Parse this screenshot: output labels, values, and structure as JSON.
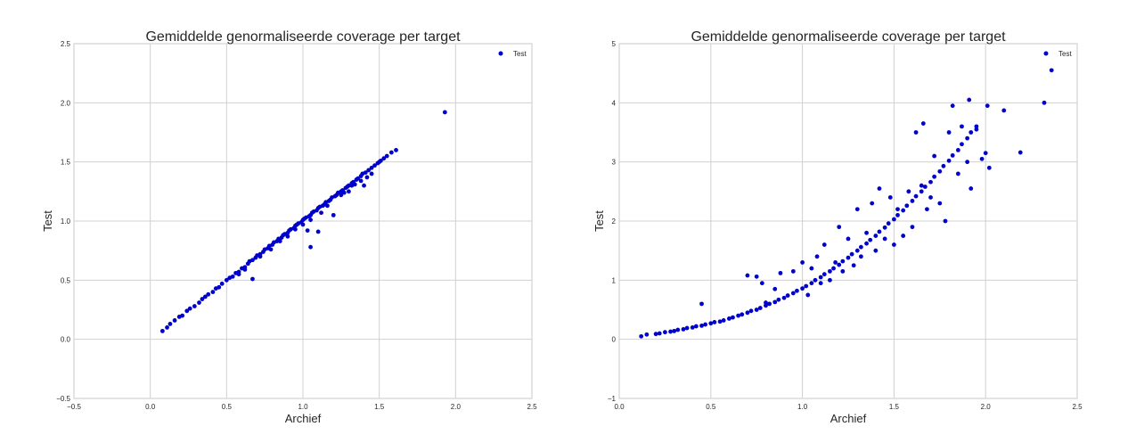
{
  "chart_data": [
    {
      "type": "scatter",
      "title": "Gemiddelde genormaliseerde coverage per target",
      "xlabel": "Archief",
      "ylabel": "Test",
      "xlim": [
        -0.5,
        2.5
      ],
      "ylim": [
        -0.5,
        2.5
      ],
      "xticks": [
        -0.5,
        0.0,
        0.5,
        1.0,
        1.5,
        2.0,
        2.5
      ],
      "yticks": [
        -0.5,
        0.0,
        0.5,
        1.0,
        1.5,
        2.0,
        2.5
      ],
      "xtick_labels": [
        "−0.5",
        "0.0",
        "0.5",
        "1.0",
        "1.5",
        "2.0",
        "2.5"
      ],
      "ytick_labels": [
        "−0.5",
        "0.0",
        "0.5",
        "1.0",
        "1.5",
        "2.0",
        "2.5"
      ],
      "grid": true,
      "legend_position": "top-right",
      "color": "#0000cc",
      "series": [
        {
          "name": "Test",
          "points": [
            [
              0.08,
              0.07
            ],
            [
              0.11,
              0.1
            ],
            [
              0.13,
              0.13
            ],
            [
              0.16,
              0.16
            ],
            [
              0.19,
              0.19
            ],
            [
              0.21,
              0.2
            ],
            [
              0.24,
              0.24
            ],
            [
              0.26,
              0.26
            ],
            [
              0.29,
              0.28
            ],
            [
              0.32,
              0.31
            ],
            [
              0.34,
              0.34
            ],
            [
              0.36,
              0.36
            ],
            [
              0.38,
              0.38
            ],
            [
              0.41,
              0.4
            ],
            [
              0.43,
              0.43
            ],
            [
              0.45,
              0.44
            ],
            [
              0.47,
              0.47
            ],
            [
              0.5,
              0.5
            ],
            [
              0.52,
              0.52
            ],
            [
              0.54,
              0.53
            ],
            [
              0.56,
              0.56
            ],
            [
              0.58,
              0.57
            ],
            [
              0.6,
              0.6
            ],
            [
              0.62,
              0.61
            ],
            [
              0.64,
              0.64
            ],
            [
              0.65,
              0.66
            ],
            [
              0.67,
              0.67
            ],
            [
              0.69,
              0.69
            ],
            [
              0.7,
              0.71
            ],
            [
              0.72,
              0.72
            ],
            [
              0.74,
              0.74
            ],
            [
              0.75,
              0.76
            ],
            [
              0.77,
              0.77
            ],
            [
              0.78,
              0.79
            ],
            [
              0.8,
              0.8
            ],
            [
              0.81,
              0.82
            ],
            [
              0.83,
              0.83
            ],
            [
              0.84,
              0.85
            ],
            [
              0.86,
              0.86
            ],
            [
              0.87,
              0.88
            ],
            [
              0.88,
              0.89
            ],
            [
              0.9,
              0.9
            ],
            [
              0.91,
              0.92
            ],
            [
              0.92,
              0.93
            ],
            [
              0.94,
              0.94
            ],
            [
              0.95,
              0.96
            ],
            [
              0.96,
              0.97
            ],
            [
              0.97,
              0.98
            ],
            [
              0.99,
              0.99
            ],
            [
              1.0,
              1.01
            ],
            [
              1.01,
              1.02
            ],
            [
              1.02,
              1.03
            ],
            [
              1.04,
              1.04
            ],
            [
              1.05,
              1.05
            ],
            [
              1.06,
              1.07
            ],
            [
              1.07,
              1.08
            ],
            [
              1.09,
              1.09
            ],
            [
              1.1,
              1.11
            ],
            [
              1.11,
              1.12
            ],
            [
              1.13,
              1.13
            ],
            [
              1.14,
              1.14
            ],
            [
              1.15,
              1.16
            ],
            [
              1.17,
              1.17
            ],
            [
              1.18,
              1.18
            ],
            [
              1.19,
              1.2
            ],
            [
              1.21,
              1.21
            ],
            [
              1.22,
              1.22
            ],
            [
              1.23,
              1.24
            ],
            [
              1.25,
              1.25
            ],
            [
              1.26,
              1.26
            ],
            [
              1.28,
              1.28
            ],
            [
              1.29,
              1.29
            ],
            [
              1.3,
              1.3
            ],
            [
              1.32,
              1.32
            ],
            [
              1.33,
              1.33
            ],
            [
              1.35,
              1.35
            ],
            [
              1.36,
              1.36
            ],
            [
              1.38,
              1.38
            ],
            [
              1.39,
              1.4
            ],
            [
              1.41,
              1.41
            ],
            [
              1.43,
              1.43
            ],
            [
              1.45,
              1.45
            ],
            [
              1.47,
              1.47
            ],
            [
              1.49,
              1.49
            ],
            [
              1.51,
              1.51
            ],
            [
              1.53,
              1.53
            ],
            [
              1.55,
              1.55
            ],
            [
              1.58,
              1.58
            ],
            [
              1.61,
              1.6
            ],
            [
              0.58,
              0.55
            ],
            [
              0.62,
              0.59
            ],
            [
              0.67,
              0.51
            ],
            [
              0.72,
              0.7
            ],
            [
              0.79,
              0.76
            ],
            [
              0.85,
              0.83
            ],
            [
              0.9,
              0.87
            ],
            [
              0.95,
              0.93
            ],
            [
              1.0,
              0.97
            ],
            [
              1.05,
              1.01
            ],
            [
              1.03,
              0.92
            ],
            [
              1.05,
              0.78
            ],
            [
              1.1,
              0.91
            ],
            [
              1.12,
              1.07
            ],
            [
              1.16,
              1.13
            ],
            [
              1.2,
              1.05
            ],
            [
              1.25,
              1.22
            ],
            [
              1.3,
              1.25
            ],
            [
              1.34,
              1.31
            ],
            [
              1.38,
              1.34
            ],
            [
              1.42,
              1.37
            ],
            [
              1.4,
              1.3
            ],
            [
              1.45,
              1.4
            ],
            [
              1.5,
              1.5
            ],
            [
              1.32,
              1.3
            ],
            [
              1.27,
              1.24
            ],
            [
              1.93,
              1.92
            ]
          ]
        }
      ]
    },
    {
      "type": "scatter",
      "title": "Gemiddelde genormaliseerde coverage per target",
      "xlabel": "Archief",
      "ylabel": "Test",
      "xlim": [
        0.0,
        2.5
      ],
      "ylim": [
        -1,
        5
      ],
      "xticks": [
        0.0,
        0.5,
        1.0,
        1.5,
        2.0,
        2.5
      ],
      "yticks": [
        -1,
        0,
        1,
        2,
        3,
        4,
        5
      ],
      "xtick_labels": [
        "0.0",
        "0.5",
        "1.0",
        "1.5",
        "2.0",
        "2.5"
      ],
      "ytick_labels": [
        "−1",
        "0",
        "1",
        "2",
        "3",
        "4",
        "5"
      ],
      "grid": true,
      "legend_position": "top-right",
      "color": "#0000cc",
      "series": [
        {
          "name": "Test",
          "points": [
            [
              0.12,
              0.05
            ],
            [
              0.15,
              0.08
            ],
            [
              0.2,
              0.09
            ],
            [
              0.22,
              0.1
            ],
            [
              0.25,
              0.12
            ],
            [
              0.28,
              0.13
            ],
            [
              0.3,
              0.14
            ],
            [
              0.32,
              0.16
            ],
            [
              0.35,
              0.17
            ],
            [
              0.37,
              0.19
            ],
            [
              0.4,
              0.2
            ],
            [
              0.42,
              0.22
            ],
            [
              0.45,
              0.23
            ],
            [
              0.47,
              0.25
            ],
            [
              0.5,
              0.27
            ],
            [
              0.52,
              0.29
            ],
            [
              0.55,
              0.3
            ],
            [
              0.57,
              0.32
            ],
            [
              0.6,
              0.35
            ],
            [
              0.62,
              0.37
            ],
            [
              0.65,
              0.4
            ],
            [
              0.67,
              0.42
            ],
            [
              0.7,
              0.45
            ],
            [
              0.72,
              0.48
            ],
            [
              0.75,
              0.5
            ],
            [
              0.77,
              0.53
            ],
            [
              0.8,
              0.57
            ],
            [
              0.82,
              0.6
            ],
            [
              0.85,
              0.63
            ],
            [
              0.87,
              0.67
            ],
            [
              0.9,
              0.7
            ],
            [
              0.92,
              0.74
            ],
            [
              0.95,
              0.78
            ],
            [
              0.97,
              0.82
            ],
            [
              1.0,
              0.86
            ],
            [
              1.02,
              0.9
            ],
            [
              1.05,
              0.95
            ],
            [
              1.07,
              1.0
            ],
            [
              1.1,
              1.05
            ],
            [
              1.12,
              1.1
            ],
            [
              1.15,
              1.15
            ],
            [
              1.17,
              1.2
            ],
            [
              1.2,
              1.26
            ],
            [
              1.22,
              1.32
            ],
            [
              1.25,
              1.38
            ],
            [
              1.27,
              1.44
            ],
            [
              1.3,
              1.5
            ],
            [
              1.32,
              1.56
            ],
            [
              1.35,
              1.62
            ],
            [
              1.37,
              1.68
            ],
            [
              1.4,
              1.75
            ],
            [
              1.42,
              1.82
            ],
            [
              1.45,
              1.89
            ],
            [
              1.47,
              1.96
            ],
            [
              1.5,
              2.03
            ],
            [
              1.52,
              2.1
            ],
            [
              1.55,
              2.18
            ],
            [
              1.57,
              2.26
            ],
            [
              1.6,
              2.34
            ],
            [
              1.62,
              2.42
            ],
            [
              1.65,
              2.5
            ],
            [
              1.67,
              2.58
            ],
            [
              1.7,
              2.66
            ],
            [
              1.72,
              2.75
            ],
            [
              1.75,
              2.84
            ],
            [
              1.77,
              2.93
            ],
            [
              1.8,
              3.02
            ],
            [
              1.82,
              3.11
            ],
            [
              1.85,
              3.2
            ],
            [
              1.87,
              3.3
            ],
            [
              1.9,
              3.4
            ],
            [
              1.92,
              3.5
            ],
            [
              1.95,
              3.6
            ],
            [
              0.45,
              0.6
            ],
            [
              0.7,
              1.08
            ],
            [
              0.75,
              1.06
            ],
            [
              0.78,
              0.95
            ],
            [
              0.8,
              0.62
            ],
            [
              0.85,
              0.85
            ],
            [
              0.88,
              1.12
            ],
            [
              0.95,
              1.15
            ],
            [
              1.0,
              1.3
            ],
            [
              1.03,
              0.75
            ],
            [
              1.05,
              1.2
            ],
            [
              1.08,
              1.4
            ],
            [
              1.1,
              0.95
            ],
            [
              1.12,
              1.6
            ],
            [
              1.15,
              1.0
            ],
            [
              1.18,
              1.3
            ],
            [
              1.2,
              1.9
            ],
            [
              1.22,
              1.15
            ],
            [
              1.25,
              1.7
            ],
            [
              1.28,
              1.25
            ],
            [
              1.3,
              2.2
            ],
            [
              1.32,
              1.4
            ],
            [
              1.35,
              1.8
            ],
            [
              1.38,
              2.3
            ],
            [
              1.4,
              1.5
            ],
            [
              1.42,
              2.55
            ],
            [
              1.45,
              1.7
            ],
            [
              1.48,
              2.4
            ],
            [
              1.5,
              1.6
            ],
            [
              1.52,
              2.2
            ],
            [
              1.55,
              1.75
            ],
            [
              1.58,
              2.5
            ],
            [
              1.6,
              1.9
            ],
            [
              1.62,
              3.5
            ],
            [
              1.65,
              2.6
            ],
            [
              1.66,
              3.65
            ],
            [
              1.68,
              2.2
            ],
            [
              1.7,
              2.4
            ],
            [
              1.72,
              3.1
            ],
            [
              1.75,
              2.3
            ],
            [
              1.78,
              2.0
            ],
            [
              1.8,
              3.5
            ],
            [
              1.82,
              3.95
            ],
            [
              1.85,
              2.8
            ],
            [
              1.87,
              3.6
            ],
            [
              1.9,
              3.0
            ],
            [
              1.91,
              4.05
            ],
            [
              1.92,
              2.55
            ],
            [
              1.95,
              3.55
            ],
            [
              1.98,
              3.05
            ],
            [
              2.0,
              3.15
            ],
            [
              2.01,
              3.95
            ],
            [
              2.02,
              2.9
            ],
            [
              2.1,
              3.87
            ],
            [
              2.19,
              3.16
            ],
            [
              2.32,
              4.0
            ],
            [
              2.36,
              4.55
            ]
          ]
        }
      ]
    }
  ]
}
